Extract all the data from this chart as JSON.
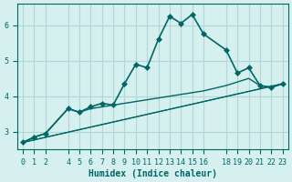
{
  "xlabel": "Humidex (Indice chaleur)",
  "ylabel": "",
  "bg_color": "#d6efef",
  "grid_color": "#b0d8d8",
  "line_color": "#006666",
  "xlim": [
    -0.5,
    23.5
  ],
  "ylim": [
    2.5,
    6.6
  ],
  "yticks": [
    3,
    4,
    5,
    6
  ],
  "xticks": [
    0,
    1,
    2,
    4,
    5,
    6,
    7,
    8,
    9,
    10,
    11,
    12,
    13,
    14,
    15,
    16,
    18,
    19,
    20,
    21,
    22,
    23
  ],
  "series": [
    {
      "x": [
        0,
        1,
        2,
        4,
        5,
        6,
        7,
        8,
        9,
        10,
        11,
        12,
        13,
        14,
        15,
        16,
        18,
        19,
        20,
        21,
        22,
        23
      ],
      "y": [
        2.7,
        2.85,
        2.95,
        3.65,
        3.55,
        3.7,
        3.8,
        3.75,
        4.35,
        4.9,
        4.8,
        5.6,
        6.25,
        6.05,
        6.3,
        5.75,
        5.3,
        4.65,
        4.8,
        4.3,
        4.25,
        4.35
      ],
      "marker": "D",
      "markersize": 3,
      "linewidth": 1.2
    },
    {
      "x": [
        0,
        1,
        2,
        4,
        5,
        6,
        7,
        8,
        9,
        10,
        11,
        12,
        13,
        14,
        15,
        16,
        18,
        19,
        20,
        21,
        22,
        23
      ],
      "y": [
        2.7,
        2.85,
        2.95,
        3.65,
        3.55,
        3.65,
        3.7,
        3.75,
        3.8,
        3.85,
        3.9,
        3.95,
        4.0,
        4.05,
        4.1,
        4.15,
        4.3,
        4.4,
        4.5,
        4.3,
        4.25,
        4.35
      ],
      "marker": null,
      "markersize": 0,
      "linewidth": 1.0
    },
    {
      "x": [
        0,
        23
      ],
      "y": [
        2.7,
        4.35
      ],
      "marker": null,
      "markersize": 0,
      "linewidth": 1.0
    },
    {
      "x": [
        0,
        23
      ],
      "y": [
        2.7,
        4.35
      ],
      "marker": null,
      "markersize": 0,
      "linewidth": 0.7
    }
  ]
}
